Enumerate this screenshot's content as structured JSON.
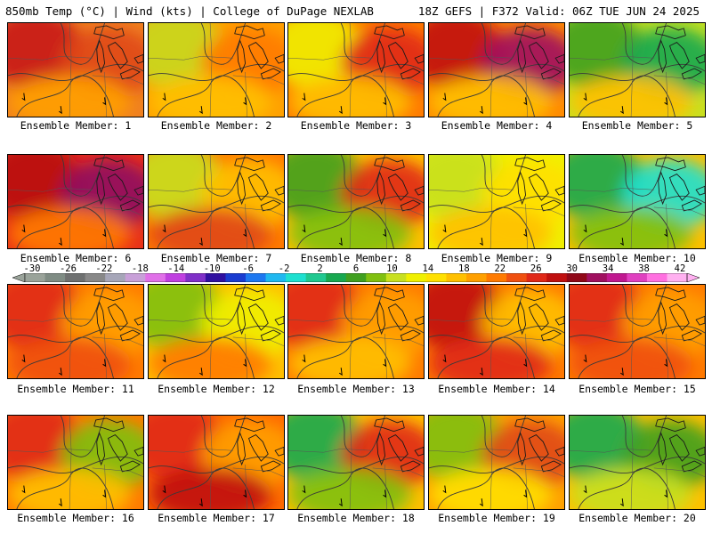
{
  "header": {
    "left_title": "850mb Temp (°C) | Wind (kts) | College of DuPage NEXLAB",
    "right_title": "18Z GEFS | F372 Valid: 06Z TUE JUN 24 2025"
  },
  "colorbar": {
    "labels": [
      "-30",
      "-26",
      "-22",
      "-18",
      "-14",
      "-10",
      "-6",
      "-2",
      "2",
      "6",
      "10",
      "14",
      "18",
      "22",
      "26",
      "30",
      "34",
      "38",
      "42"
    ],
    "colors": [
      "#9aa39a",
      "#7f8c84",
      "#6e7070",
      "#888888",
      "#a6a6b8",
      "#c8a0d8",
      "#e070e8",
      "#c040e0",
      "#8030c8",
      "#3010a0",
      "#1a3cd0",
      "#1e78f0",
      "#20b8f0",
      "#1ee0d0",
      "#20c890",
      "#18a850",
      "#40a020",
      "#80c010",
      "#c8e020",
      "#f0f000",
      "#ffe000",
      "#ffc000",
      "#ffa000",
      "#ff7a00",
      "#f05010",
      "#e02818",
      "#c01010",
      "#900818",
      "#a01060",
      "#c01890",
      "#e040c0",
      "#ff70e0",
      "#ffb0f0"
    ]
  },
  "panels": [
    {
      "label": "Ensemble Member: 1",
      "base": "#f08020",
      "blobs": [
        {
          "c": "#c81818"
        },
        {
          "c": "#e04818"
        },
        {
          "c": "#ffa000"
        }
      ]
    },
    {
      "label": "Ensemble Member: 2",
      "base": "#ffa000",
      "blobs": [
        {
          "c": "#c8d820"
        },
        {
          "c": "#ff7a00"
        },
        {
          "c": "#ffc000"
        }
      ]
    },
    {
      "label": "Ensemble Member: 3",
      "base": "#ff7a00",
      "blobs": [
        {
          "c": "#f0f000"
        },
        {
          "c": "#e02818"
        },
        {
          "c": "#ffc000"
        }
      ]
    },
    {
      "label": "Ensemble Member: 4",
      "base": "#ff8a00",
      "blobs": [
        {
          "c": "#c01010"
        },
        {
          "c": "#a01060"
        },
        {
          "c": "#ffc000"
        }
      ]
    },
    {
      "label": "Ensemble Member: 5",
      "base": "#c8e020",
      "blobs": [
        {
          "c": "#40a020"
        },
        {
          "c": "#18a850"
        },
        {
          "c": "#ffc000"
        }
      ]
    },
    {
      "label": "Ensemble Member: 6",
      "base": "#e83018",
      "blobs": [
        {
          "c": "#b81010"
        },
        {
          "c": "#901060"
        },
        {
          "c": "#ff7a00"
        }
      ]
    },
    {
      "label": "Ensemble Member: 7",
      "base": "#ff7a00",
      "blobs": [
        {
          "c": "#c8e020"
        },
        {
          "c": "#ffc000"
        },
        {
          "c": "#e04818"
        }
      ]
    },
    {
      "label": "Ensemble Member: 8",
      "base": "#ffc000",
      "blobs": [
        {
          "c": "#40a020"
        },
        {
          "c": "#e02818"
        },
        {
          "c": "#80c010"
        }
      ]
    },
    {
      "label": "Ensemble Member: 9",
      "base": "#f0f000",
      "blobs": [
        {
          "c": "#c8e020"
        },
        {
          "c": "#ffe000"
        },
        {
          "c": "#ffc000"
        }
      ]
    },
    {
      "label": "Ensemble Member: 10",
      "base": "#ffc000",
      "blobs": [
        {
          "c": "#18a850"
        },
        {
          "c": "#1ee0d0"
        },
        {
          "c": "#80c010"
        }
      ]
    },
    {
      "label": "Ensemble Member: 11",
      "base": "#ff7a00",
      "blobs": [
        {
          "c": "#e02818"
        },
        {
          "c": "#ffa000"
        },
        {
          "c": "#f05010"
        }
      ]
    },
    {
      "label": "Ensemble Member: 12",
      "base": "#ffc000",
      "blobs": [
        {
          "c": "#80c010"
        },
        {
          "c": "#f0f000"
        },
        {
          "c": "#ff7a00"
        }
      ]
    },
    {
      "label": "Ensemble Member: 13",
      "base": "#ff7a00",
      "blobs": [
        {
          "c": "#e02818"
        },
        {
          "c": "#ffa000"
        },
        {
          "c": "#ffc000"
        }
      ]
    },
    {
      "label": "Ensemble Member: 14",
      "base": "#ff7a00",
      "blobs": [
        {
          "c": "#c01010"
        },
        {
          "c": "#ffc000"
        },
        {
          "c": "#e02818"
        }
      ]
    },
    {
      "label": "Ensemble Member: 15",
      "base": "#ff7a00",
      "blobs": [
        {
          "c": "#e02818"
        },
        {
          "c": "#ffa000"
        },
        {
          "c": "#f05010"
        }
      ]
    },
    {
      "label": "Ensemble Member: 16",
      "base": "#ff7a00",
      "blobs": [
        {
          "c": "#e02818"
        },
        {
          "c": "#80c010"
        },
        {
          "c": "#ffc000"
        }
      ]
    },
    {
      "label": "Ensemble Member: 17",
      "base": "#ff6a00",
      "blobs": [
        {
          "c": "#e02818"
        },
        {
          "c": "#ffa000"
        },
        {
          "c": "#c01010"
        }
      ]
    },
    {
      "label": "Ensemble Member: 18",
      "base": "#ffc000",
      "blobs": [
        {
          "c": "#18a850"
        },
        {
          "c": "#e02818"
        },
        {
          "c": "#80c010"
        }
      ]
    },
    {
      "label": "Ensemble Member: 19",
      "base": "#ffa000",
      "blobs": [
        {
          "c": "#80c010"
        },
        {
          "c": "#e04818"
        },
        {
          "c": "#ffe000"
        }
      ]
    },
    {
      "label": "Ensemble Member: 20",
      "base": "#ffc000",
      "blobs": [
        {
          "c": "#18a850"
        },
        {
          "c": "#40a020"
        },
        {
          "c": "#c8e020"
        }
      ]
    }
  ]
}
